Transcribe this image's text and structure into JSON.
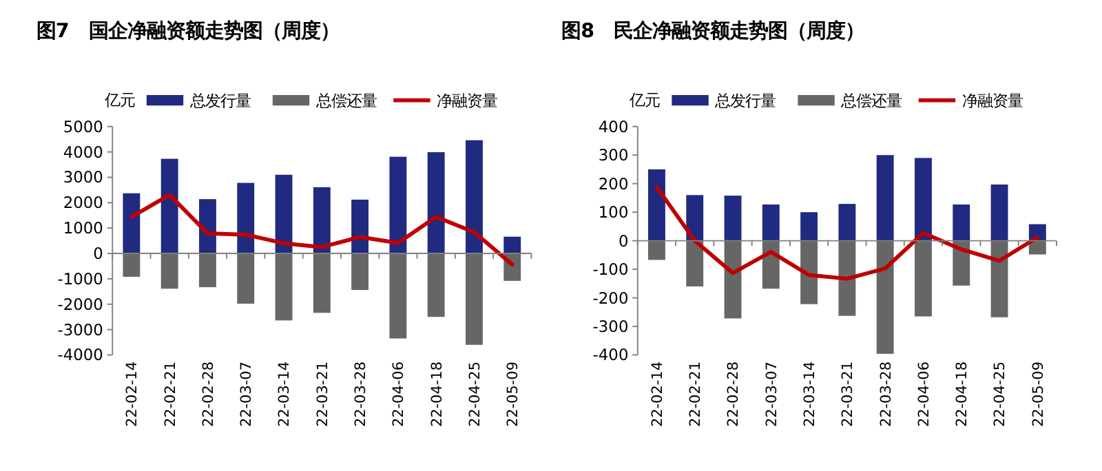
{
  "chart_data": [
    {
      "type": "bar",
      "title": "图7　国企净融资额走势图（周度）",
      "ylabel": "亿元",
      "stacked": true,
      "legend": "top",
      "categories": [
        "22-02-14",
        "22-02-21",
        "22-02-28",
        "22-03-07",
        "22-03-14",
        "22-03-21",
        "22-03-28",
        "22-04-06",
        "22-04-18",
        "22-04-25",
        "22-05-09"
      ],
      "ylim": [
        -4000,
        5000
      ],
      "yticks": [
        -4000,
        -3000,
        -2000,
        -1000,
        0,
        1000,
        2000,
        3000,
        4000,
        5000
      ],
      "series": [
        {
          "name": "总发行量",
          "color": "#202a80",
          "values": [
            2370,
            3730,
            2140,
            2780,
            3100,
            2610,
            2120,
            3810,
            3990,
            4460,
            660
          ]
        },
        {
          "name": "总偿还量",
          "color": "#666666",
          "values": [
            -920,
            -1390,
            -1330,
            -1980,
            -2640,
            -2340,
            -1440,
            -3350,
            -2500,
            -3600,
            -1080
          ]
        },
        {
          "name": "净融资量",
          "type": "line",
          "color": "#c00000",
          "values": [
            1440,
            2310,
            790,
            740,
            400,
            250,
            650,
            410,
            1440,
            840,
            -440
          ]
        }
      ]
    },
    {
      "type": "bar",
      "title": "图8　民企净融资额走势图（周度）",
      "ylabel": "亿元",
      "stacked": true,
      "legend": "top",
      "categories": [
        "22-02-14",
        "22-02-21",
        "22-02-28",
        "22-03-07",
        "22-03-14",
        "22-03-21",
        "22-03-28",
        "22-04-06",
        "22-04-18",
        "22-04-25",
        "22-05-09"
      ],
      "ylim": [
        -400,
        400
      ],
      "yticks": [
        -400,
        -300,
        -200,
        -100,
        0,
        100,
        200,
        300,
        400
      ],
      "series": [
        {
          "name": "总发行量",
          "color": "#202a80",
          "values": [
            250,
            160,
            158,
            127,
            100,
            129,
            300,
            290,
            127,
            197,
            58
          ]
        },
        {
          "name": "总偿还量",
          "color": "#666666",
          "values": [
            -67,
            -160,
            -272,
            -168,
            -222,
            -263,
            -396,
            -265,
            -157,
            -268,
            -48
          ]
        },
        {
          "name": "净融资量",
          "type": "line",
          "color": "#c00000",
          "values": [
            188,
            0,
            -113,
            -39,
            -120,
            -133,
            -97,
            27,
            -30,
            -70,
            12
          ]
        }
      ]
    }
  ]
}
